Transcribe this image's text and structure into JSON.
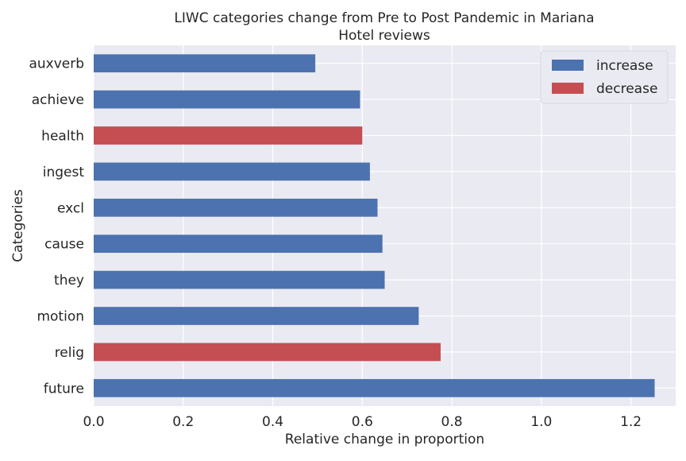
{
  "chart_data": {
    "type": "bar",
    "orientation": "horizontal",
    "title": "LIWC categories change from Pre to Post Pandemic in Mariana\nHotel reviews",
    "xlabel": "Relative change in proportion",
    "ylabel": "Categories",
    "xlim": [
      0,
      1.3
    ],
    "xticks": [
      "0.0",
      "0.2",
      "0.4",
      "0.6",
      "0.8",
      "1.0",
      "1.2"
    ],
    "grid": true,
    "legend_position": "top-right",
    "categories": [
      "auxverb",
      "achieve",
      "health",
      "ingest",
      "excl",
      "cause",
      "they",
      "motion",
      "relig",
      "future"
    ],
    "values": [
      0.495,
      0.595,
      0.6,
      0.617,
      0.634,
      0.645,
      0.65,
      0.726,
      0.775,
      1.253
    ],
    "direction": [
      "increase",
      "increase",
      "decrease",
      "increase",
      "increase",
      "increase",
      "increase",
      "increase",
      "decrease",
      "increase"
    ],
    "legend": [
      {
        "name": "increase",
        "color": "#4c72b0"
      },
      {
        "name": "decrease",
        "color": "#c44e52"
      }
    ],
    "colors": {
      "increase": "#4c72b0",
      "decrease": "#c44e52",
      "background": "#eaeaf2",
      "grid": "#ffffff"
    }
  }
}
